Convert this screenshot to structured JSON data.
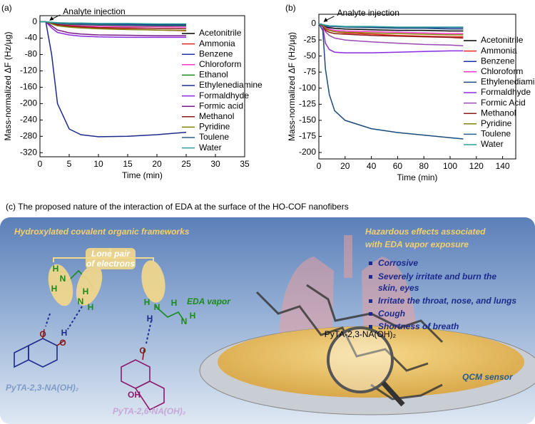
{
  "chart_data": [
    {
      "type": "line",
      "panel": "(a)",
      "annotation": "Analyte injection",
      "xlabel": "Time (min)",
      "ylabel": "Mass-normalized ΔF (Hz/µg)",
      "xlim": [
        0,
        35
      ],
      "xticks": [
        0,
        5,
        10,
        15,
        20,
        25,
        30,
        35
      ],
      "ylim": [
        -330,
        15
      ],
      "yticks": [
        0,
        -40,
        -80,
        -120,
        -160,
        -200,
        -240,
        -280,
        -320
      ],
      "grid": false,
      "x": [
        0,
        1,
        2,
        3,
        5,
        7,
        10,
        15,
        20,
        25
      ],
      "series": [
        {
          "name": "Acetonitrile",
          "color": "#000000",
          "values": [
            0,
            0,
            -3,
            -5,
            -6,
            -7,
            -7,
            -8,
            -8,
            -8
          ]
        },
        {
          "name": "Ammonia",
          "color": "#e8251f",
          "values": [
            0,
            0,
            -4,
            -8,
            -12,
            -14,
            -16,
            -18,
            -20,
            -22
          ]
        },
        {
          "name": "Benzene",
          "color": "#1f2fa8",
          "values": [
            0,
            0,
            -2,
            -3,
            -4,
            -5,
            -5,
            -6,
            -6,
            -6
          ]
        },
        {
          "name": "Chloroform",
          "color": "#ff33cc",
          "values": [
            0,
            0,
            -3,
            -6,
            -8,
            -10,
            -11,
            -12,
            -12,
            -13
          ]
        },
        {
          "name": "Ethanol",
          "color": "#1a8a1a",
          "values": [
            0,
            0,
            -2,
            -4,
            -6,
            -7,
            -8,
            -9,
            -10,
            -10
          ]
        },
        {
          "name": "Ethylenediamine",
          "color": "#1c2a8c",
          "values": [
            0,
            0,
            -80,
            -200,
            -262,
            -276,
            -281,
            -280,
            -276,
            -270
          ]
        },
        {
          "name": "Formaldhyde",
          "color": "#8a2be2",
          "values": [
            0,
            0,
            -15,
            -26,
            -32,
            -35,
            -37,
            -38,
            -38,
            -38
          ]
        },
        {
          "name": "Formic acid",
          "color": "#7a1a8a",
          "values": [
            0,
            0,
            -10,
            -20,
            -27,
            -30,
            -32,
            -33,
            -34,
            -34
          ]
        },
        {
          "name": "Methanol",
          "color": "#8b1a1a",
          "values": [
            0,
            0,
            -4,
            -7,
            -10,
            -12,
            -14,
            -15,
            -16,
            -17
          ]
        },
        {
          "name": "Pyridine",
          "color": "#808000",
          "values": [
            0,
            0,
            -5,
            -10,
            -13,
            -15,
            -17,
            -19,
            -20,
            -21
          ]
        },
        {
          "name": "Toulene",
          "color": "#2b5b8a",
          "values": [
            0,
            0,
            -2,
            -4,
            -5,
            -6,
            -7,
            -8,
            -9,
            -9
          ]
        },
        {
          "name": "Water",
          "color": "#2aa198",
          "values": [
            0,
            0,
            -1,
            -2,
            -3,
            -3,
            -4,
            -4,
            -5,
            -5
          ]
        }
      ]
    },
    {
      "type": "line",
      "panel": "(b)",
      "annotation": "Analyte injection",
      "xlabel": "Time (min)",
      "ylabel": "Mass-normalized ΔF (Hz/µg)",
      "xlim": [
        0,
        150
      ],
      "xticks": [
        0,
        20,
        40,
        60,
        80,
        100,
        120,
        140
      ],
      "ylim": [
        -210,
        15
      ],
      "yticks": [
        0,
        -25,
        -50,
        -75,
        -100,
        -125,
        -150,
        -175,
        -200
      ],
      "grid": false,
      "x": [
        0,
        3,
        5,
        8,
        12,
        20,
        40,
        60,
        80,
        100,
        110
      ],
      "series": [
        {
          "name": "Acetonitrile",
          "color": "#000000",
          "values": [
            0,
            -2,
            -5,
            -6,
            -7,
            -8,
            -9,
            -10,
            -10,
            -11,
            -11
          ]
        },
        {
          "name": "Ammonia",
          "color": "#e8251f",
          "values": [
            0,
            -3,
            -8,
            -10,
            -12,
            -14,
            -16,
            -18,
            -19,
            -20,
            -20
          ]
        },
        {
          "name": "Benzene",
          "color": "#1f2fa8",
          "values": [
            0,
            -1,
            -3,
            -4,
            -4,
            -5,
            -5,
            -6,
            -6,
            -6,
            -6
          ]
        },
        {
          "name": "Chloroform",
          "color": "#ff33cc",
          "values": [
            0,
            -2,
            -6,
            -8,
            -10,
            -11,
            -12,
            -13,
            -14,
            -15,
            -15
          ]
        },
        {
          "name": "Ethylenediamine",
          "color": "#1c4a7c",
          "values": [
            0,
            -10,
            -70,
            -110,
            -135,
            -150,
            -163,
            -169,
            -173,
            -177,
            -179
          ]
        },
        {
          "name": "Formaldhyde",
          "color": "#8a2be2",
          "values": [
            0,
            -5,
            -30,
            -40,
            -44,
            -45,
            -45,
            -44,
            -43,
            -42,
            -42
          ]
        },
        {
          "name": "Formic Acid",
          "color": "#9a4ab0",
          "values": [
            0,
            -4,
            -12,
            -18,
            -22,
            -25,
            -28,
            -30,
            -32,
            -33,
            -34
          ]
        },
        {
          "name": "Methanol",
          "color": "#8b1a1a",
          "values": [
            0,
            -3,
            -10,
            -13,
            -15,
            -16,
            -18,
            -19,
            -20,
            -21,
            -22
          ]
        },
        {
          "name": "Pyridine",
          "color": "#808000",
          "values": [
            0,
            -2,
            -7,
            -10,
            -12,
            -13,
            -14,
            -15,
            -16,
            -17,
            -17
          ]
        },
        {
          "name": "Toulene",
          "color": "#2b5b8a",
          "values": [
            0,
            -1,
            -2,
            -3,
            -4,
            -5,
            -6,
            -7,
            -7,
            -8,
            -8
          ]
        },
        {
          "name": "Water",
          "color": "#2aa198",
          "values": [
            0,
            -1,
            -2,
            -3,
            -3,
            -4,
            -4,
            -5,
            -5,
            -5,
            -5
          ]
        }
      ]
    }
  ],
  "panel_c": {
    "title": "(c)  The proposed nature of the interaction of EDA at the surface of the HO-COF nanofibers",
    "left_heading": "Hydroxylated covalent organic frameworks",
    "right_heading": [
      "Hazardous effects associated",
      "with EDA vapor exposure"
    ],
    "hazards": [
      "Corrosive",
      "Severely irritate and burn the",
      "skin, eyes",
      "Irritate the throat, nose, and lungs",
      "Cough",
      "Shortness of breath"
    ],
    "lone_pair": [
      "Lone pair",
      "of electrons"
    ],
    "eda_vapor": "EDA vapor",
    "molecules": [
      "PyTA-2,3-NA(OH)₂",
      "PyTA-2,6-NA(OH)₂"
    ],
    "qcm": "QCM sensor",
    "magnifier_label": "PyTA-2,3-NA(OH)₂",
    "atoms": [
      "H",
      "N",
      "H",
      "H",
      "N",
      "H",
      "O",
      "H",
      "O",
      "H",
      "N",
      "H",
      "H",
      "N",
      "H",
      "O",
      "OH"
    ]
  }
}
